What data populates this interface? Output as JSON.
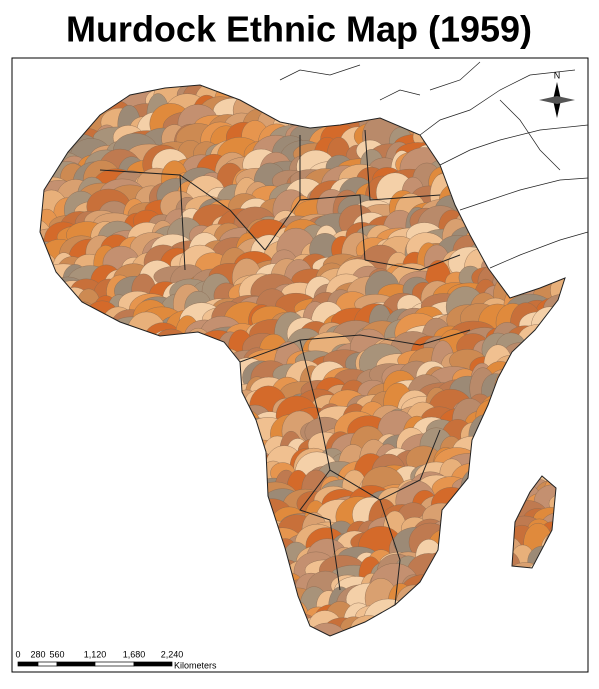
{
  "title": "Murdock Ethnic Map (1959)",
  "north_arrow": {
    "label": "N"
  },
  "scale_bar": {
    "labels": [
      "0",
      "280",
      "560",
      "1,120",
      "1,680",
      "2,240"
    ],
    "unit": "Kilometers"
  }
}
